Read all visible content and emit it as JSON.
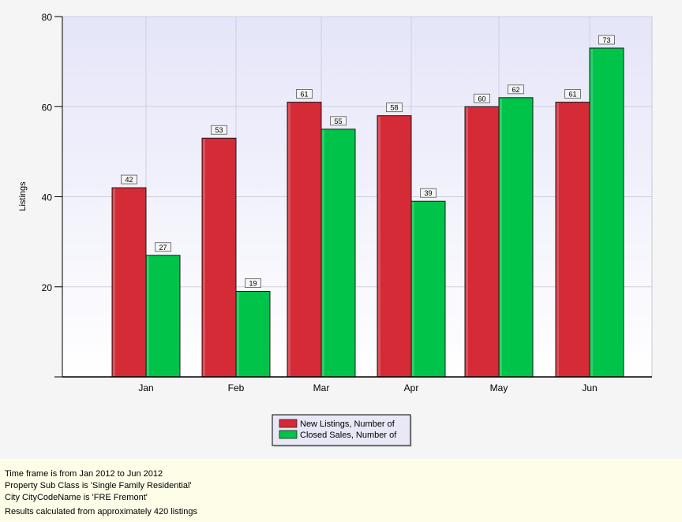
{
  "chart_data": {
    "type": "bar",
    "title": "",
    "xlabel": "",
    "ylabel": "Listings",
    "ylim": [
      0,
      80
    ],
    "yticks": [
      20,
      40,
      60,
      80
    ],
    "categories": [
      "Jan",
      "Feb",
      "Mar",
      "Apr",
      "May",
      "Jun"
    ],
    "series": [
      {
        "name": "New Listings, Number of",
        "values": [
          42,
          53,
          61,
          58,
          60,
          61
        ],
        "color": "#d42b37"
      },
      {
        "name": "Closed Sales, Number of",
        "values": [
          27,
          19,
          55,
          39,
          62,
          73
        ],
        "color": "#00c449"
      }
    ],
    "legend_position": "bottom-center",
    "grid": true,
    "data_labels": true
  },
  "footer": {
    "lines": [
      "Time frame is from Jan 2012 to Jun 2012",
      "Property Sub Class is 'Single Family Residential'",
      "City CityCodeName is 'FRE Fremont'"
    ],
    "results": "Results calculated from approximately 420 listings"
  }
}
